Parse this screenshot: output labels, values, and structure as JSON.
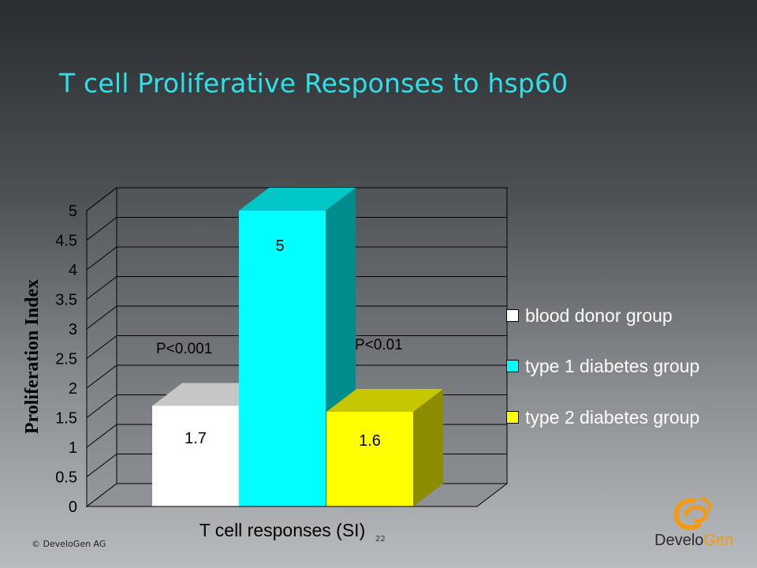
{
  "slide": {
    "title": "T cell Proliferative Responses to hsp60",
    "copyright": "© DeveloGen AG",
    "page_number": "22",
    "logo": {
      "text_main": "Develo",
      "text_accent": "Gen",
      "accent_color": "#f39a12"
    }
  },
  "colors": {
    "title": "#2fe0e8",
    "blood_donor": "#ffffff",
    "type1": "#00ffff",
    "type2": "#ffff00"
  },
  "chart_data": {
    "type": "bar",
    "style": "3d",
    "xlabel": "T cell responses (SI)",
    "ylabel": "Proliferation Index",
    "ylim": [
      0,
      5
    ],
    "yticks": [
      "0",
      "0.5",
      "1",
      "1.5",
      "2",
      "2.5",
      "3",
      "3.5",
      "4",
      "4.5",
      "5"
    ],
    "grid": true,
    "legend_position": "right",
    "categories": [
      "T cell responses (SI)"
    ],
    "series": [
      {
        "name": "blood donor group",
        "values": [
          1.7
        ],
        "label": "1.7",
        "color": "#ffffff"
      },
      {
        "name": "type 1 diabetes group",
        "values": [
          5
        ],
        "label": "5",
        "color": "#00ffff"
      },
      {
        "name": "type 2 diabetes group",
        "values": [
          1.6
        ],
        "label": "1.6",
        "color": "#ffff00"
      }
    ],
    "annotations": [
      "P<0.001",
      "P<0.01"
    ]
  }
}
